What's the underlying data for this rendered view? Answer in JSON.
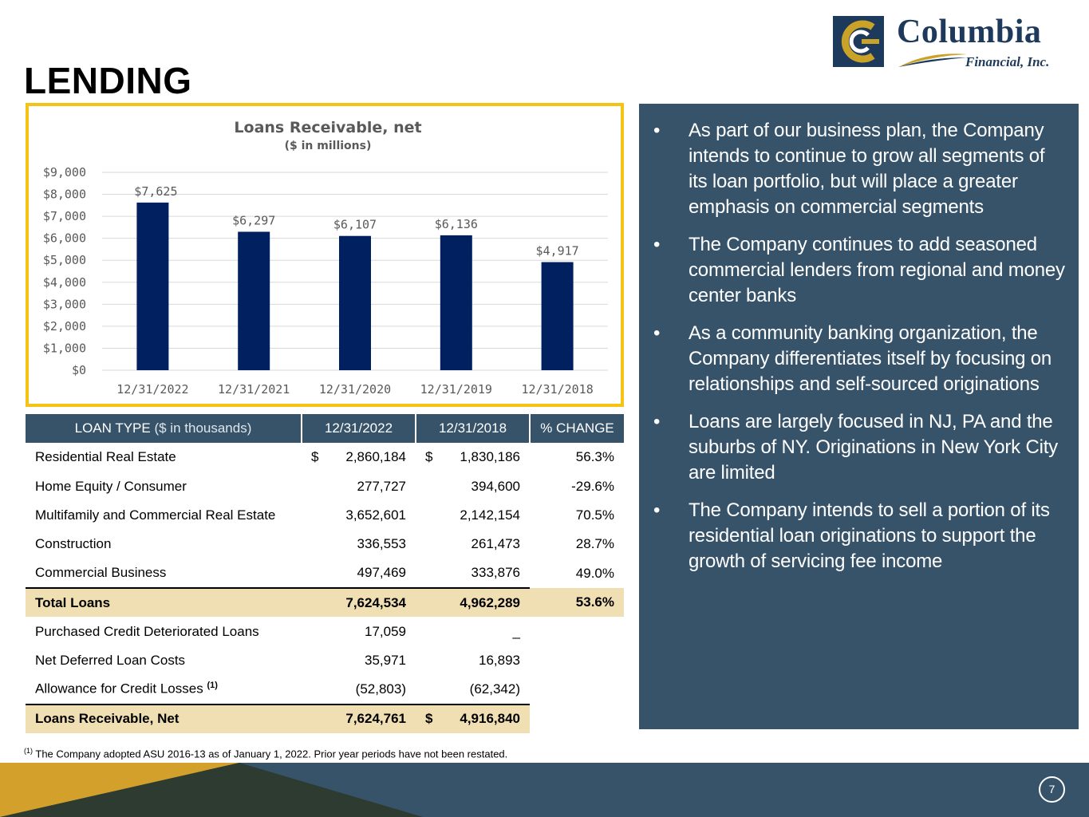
{
  "logo": {
    "name": "Columbia",
    "sub": "Financial, Inc."
  },
  "page": {
    "title": "LENDING",
    "number": "7"
  },
  "colors": {
    "navy": "#002060",
    "panel": "#37536a",
    "gold": "#f3c316",
    "highlight": "#f1dfb4"
  },
  "chart_data": {
    "type": "bar",
    "title": "Loans Receivable, net",
    "subtitle": "($ in millions)",
    "categories": [
      "12/31/2022",
      "12/31/2021",
      "12/31/2020",
      "12/31/2019",
      "12/31/2018"
    ],
    "values": [
      7625,
      6297,
      6107,
      6136,
      4917
    ],
    "value_labels": [
      "$7,625",
      "$6,297",
      "$6,107",
      "$6,136",
      "$4,917"
    ],
    "ylim": [
      0,
      9000
    ],
    "yticks": [
      0,
      1000,
      2000,
      3000,
      4000,
      5000,
      6000,
      7000,
      8000,
      9000
    ],
    "ytick_labels": [
      "$0",
      "$1,000",
      "$2,000",
      "$3,000",
      "$4,000",
      "$5,000",
      "$6,000",
      "$7,000",
      "$8,000",
      "$9,000"
    ],
    "xlabel": "",
    "ylabel": "",
    "grid": true
  },
  "table": {
    "header": {
      "col1_bold": "LOAN TYPE",
      "col1_light": "($ in thousands)",
      "col2": "12/31/2022",
      "col3": "12/31/2018",
      "col4": "% CHANGE"
    },
    "rows": [
      {
        "label": "Residential Real Estate",
        "v2022": "2,860,184",
        "v2018": "1,830,186",
        "pct": "56.3%"
      },
      {
        "label": "Home Equity / Consumer",
        "v2022": "277,727",
        "v2018": "394,600",
        "pct": "-29.6%"
      },
      {
        "label": "Multifamily and Commercial Real Estate",
        "v2022": "3,652,601",
        "v2018": "2,142,154",
        "pct": "70.5%"
      },
      {
        "label": "Construction",
        "v2022": "336,553",
        "v2018": "261,473",
        "pct": "28.7%"
      },
      {
        "label": "Commercial Business",
        "v2022": "497,469",
        "v2018": "333,876",
        "pct": "49.0%"
      },
      {
        "label": "Total Loans",
        "v2022": "7,624,534",
        "v2018": "4,962,289",
        "pct": "53.6%"
      },
      {
        "label": "Purchased Credit Deteriorated Loans",
        "v2022": "17,059",
        "v2018": "_"
      },
      {
        "label": "Net Deferred Loan Costs",
        "v2022": "35,971",
        "v2018": "16,893"
      },
      {
        "label": "Allowance for Credit Losses",
        "sup": "(1)",
        "v2022": "(52,803)",
        "v2018": "(62,342)"
      },
      {
        "label": "Loans Receivable, Net",
        "v2022": "7,624,761",
        "v2018": "4,916,840"
      }
    ],
    "dollar": "$"
  },
  "footnote": {
    "marker": "(1)",
    "text": "The Company adopted ASU 2016-13 as of January 1, 2022.  Prior year periods have not been restated."
  },
  "bullets": {
    "marker": "•",
    "items": [
      "As part of our business plan, the Company intends to continue to grow all segments of its loan portfolio, but will place a greater emphasis on commercial segments",
      "The Company continues to add seasoned commercial lenders from regional and money center banks",
      "As a community banking organization, the Company differentiates itself by focusing on relationships and self-sourced originations",
      "Loans are largely focused in NJ, PA and the suburbs of NY.  Originations in New York City are limited",
      "The Company intends to sell a portion of its residential loan originations to support the growth of servicing fee income"
    ]
  }
}
